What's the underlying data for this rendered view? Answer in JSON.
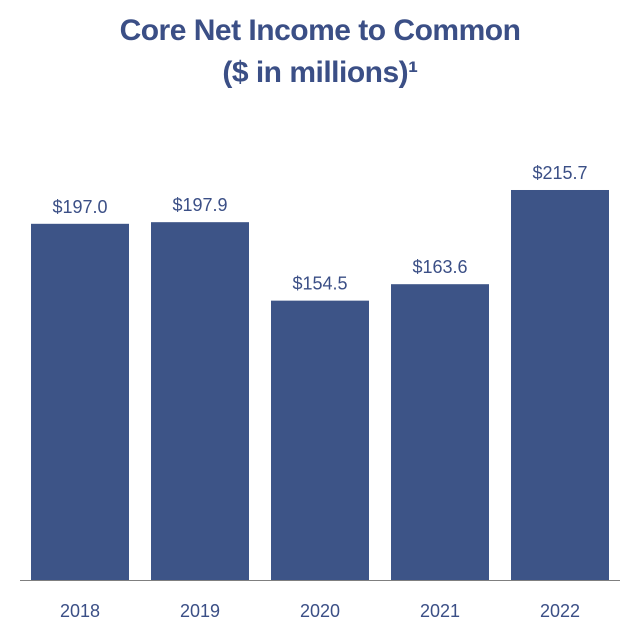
{
  "chart_data": {
    "type": "bar",
    "title": "Core Net Income to Common",
    "subtitle": "($ in millions)¹",
    "categories": [
      "2018",
      "2019",
      "2020",
      "2021",
      "2022"
    ],
    "values": [
      197.0,
      197.9,
      154.5,
      163.6,
      215.7
    ],
    "data_labels": [
      "$197.0",
      "$197.9",
      "$154.5",
      "$163.6",
      "$215.7"
    ],
    "xlabel": "",
    "ylabel": "",
    "ylim": [
      0,
      240
    ],
    "grid": false,
    "colors": {
      "bar": "#3d5487",
      "title": "#3b4f86",
      "label": "#3b4f86",
      "axis": "#7f7f7f"
    }
  }
}
